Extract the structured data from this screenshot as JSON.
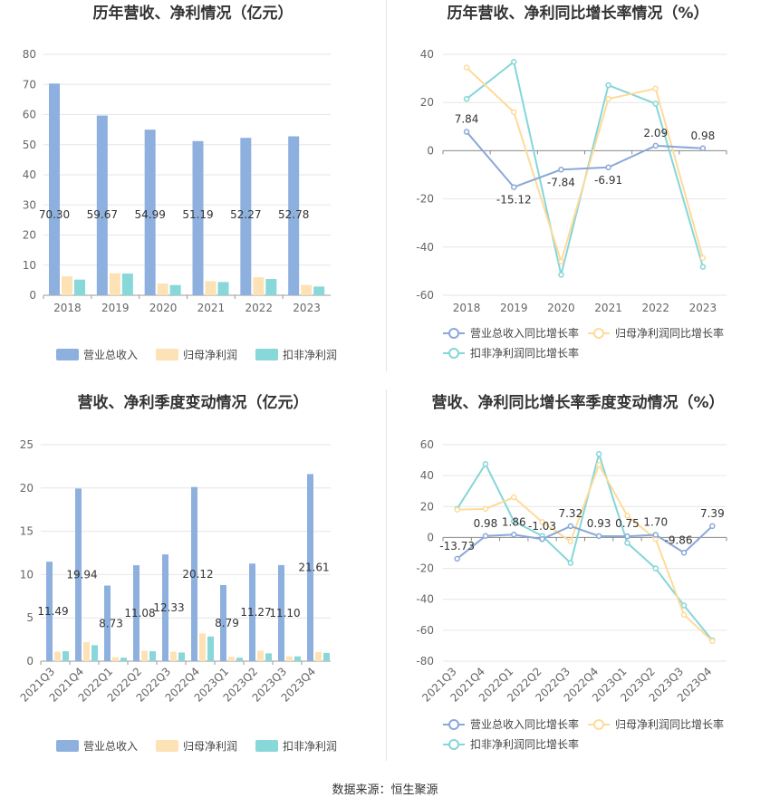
{
  "colors": {
    "revenue": "#8eb0de",
    "net_profit": "#fde2b5",
    "deducted_profit": "#88d7d9",
    "revenue_line": "#8aa8d8",
    "net_line": "#fddb9a",
    "deducted_line": "#85d6d8"
  },
  "source": "数据来源：恒生聚源",
  "chart_data": [
    {
      "type": "bar",
      "title": "历年营收、净利情况（亿元）",
      "categories": [
        "2018",
        "2019",
        "2020",
        "2021",
        "2022",
        "2023"
      ],
      "ylim": [
        0,
        80
      ],
      "yticks": [
        "0",
        "10",
        "20",
        "30",
        "40",
        "50",
        "60",
        "70",
        "80"
      ],
      "series": [
        {
          "name": "营业总收入",
          "values": [
            70.3,
            59.67,
            54.99,
            51.19,
            52.27,
            52.78
          ],
          "labels": [
            "70.30",
            "59.67",
            "54.99",
            "51.19",
            "52.27",
            "52.78"
          ]
        },
        {
          "name": "归母净利润",
          "values": [
            6.3,
            7.3,
            3.9,
            4.7,
            6.0,
            3.4
          ]
        },
        {
          "name": "扣非净利润",
          "values": [
            5.2,
            7.2,
            3.4,
            4.4,
            5.4,
            2.9
          ]
        }
      ],
      "legend": "bottom"
    },
    {
      "type": "line",
      "title": "历年营收、净利同比增长率情况（%）",
      "categories": [
        "2018",
        "2019",
        "2020",
        "2021",
        "2022",
        "2023"
      ],
      "ylim": [
        -60,
        40
      ],
      "yticks": [
        "-60",
        "-40",
        "-20",
        "0",
        "20",
        "40"
      ],
      "series": [
        {
          "name": "营业总收入同比增长率",
          "values": [
            7.84,
            -15.12,
            -7.84,
            -6.91,
            2.09,
            0.98
          ],
          "labels": [
            "7.84",
            "-15.12",
            "-7.84",
            "-6.91",
            "2.09",
            "0.98"
          ]
        },
        {
          "name": "归母净利润同比增长率",
          "values": [
            34.5,
            16.0,
            -46.0,
            21.5,
            25.8,
            -44.5
          ]
        },
        {
          "name": "扣非净利润同比增长率",
          "values": [
            21.5,
            36.9,
            -51.5,
            27.2,
            19.5,
            -48.2
          ]
        }
      ],
      "legend": "bottom"
    },
    {
      "type": "bar",
      "title": "营收、净利季度变动情况（亿元）",
      "categories": [
        "2021Q3",
        "2021Q4",
        "2022Q1",
        "2022Q2",
        "2022Q3",
        "2022Q4",
        "2023Q1",
        "2023Q2",
        "2023Q3",
        "2023Q4"
      ],
      "ylim": [
        0,
        25
      ],
      "yticks": [
        "0",
        "5",
        "10",
        "15",
        "20",
        "25"
      ],
      "series": [
        {
          "name": "营业总收入",
          "values": [
            11.49,
            19.94,
            8.73,
            11.08,
            12.33,
            20.12,
            8.79,
            11.27,
            11.1,
            21.61
          ],
          "labels": [
            "11.49",
            "19.94",
            "8.73",
            "11.08",
            "12.33",
            "20.12",
            "8.79",
            "11.27",
            "11.10",
            "21.61"
          ]
        },
        {
          "name": "归母净利润",
          "values": [
            1.1,
            2.2,
            0.45,
            1.2,
            1.1,
            3.2,
            0.5,
            1.2,
            0.55,
            1.05
          ]
        },
        {
          "name": "扣非净利润",
          "values": [
            1.15,
            1.85,
            0.4,
            1.15,
            1.0,
            2.85,
            0.4,
            0.9,
            0.55,
            0.95
          ]
        }
      ],
      "legend": "bottom"
    },
    {
      "type": "line",
      "title": "营收、净利同比增长率季度变动情况（%）",
      "categories": [
        "2021Q3",
        "2021Q4",
        "2022Q1",
        "2022Q2",
        "2022Q3",
        "2022Q4",
        "2023Q1",
        "2023Q2",
        "2023Q3",
        "2023Q4"
      ],
      "ylim": [
        -80,
        60
      ],
      "yticks": [
        "-80",
        "-60",
        "-40",
        "-20",
        "0",
        "20",
        "40",
        "60"
      ],
      "series": [
        {
          "name": "营业总收入同比增长率",
          "values": [
            -13.73,
            0.98,
            1.86,
            -1.03,
            7.32,
            0.93,
            0.75,
            1.7,
            -9.86,
            7.39
          ],
          "labels": [
            "-13.73",
            "0.98",
            "1.86",
            "-1.03",
            "7.32",
            "0.93",
            "0.75",
            "1.70",
            "-9.86",
            "7.39"
          ]
        },
        {
          "name": "归母净利润同比增长率",
          "values": [
            18.0,
            18.5,
            26.0,
            10.0,
            -2.5,
            47.0,
            14.0,
            -1.0,
            -50.0,
            -67.0
          ]
        },
        {
          "name": "扣非净利润同比增长率",
          "values": [
            18.5,
            47.5,
            10.5,
            1.0,
            -16.5,
            54.0,
            -3.5,
            -20.0,
            -44.0,
            -66.5
          ]
        }
      ],
      "legend": "bottom"
    }
  ]
}
